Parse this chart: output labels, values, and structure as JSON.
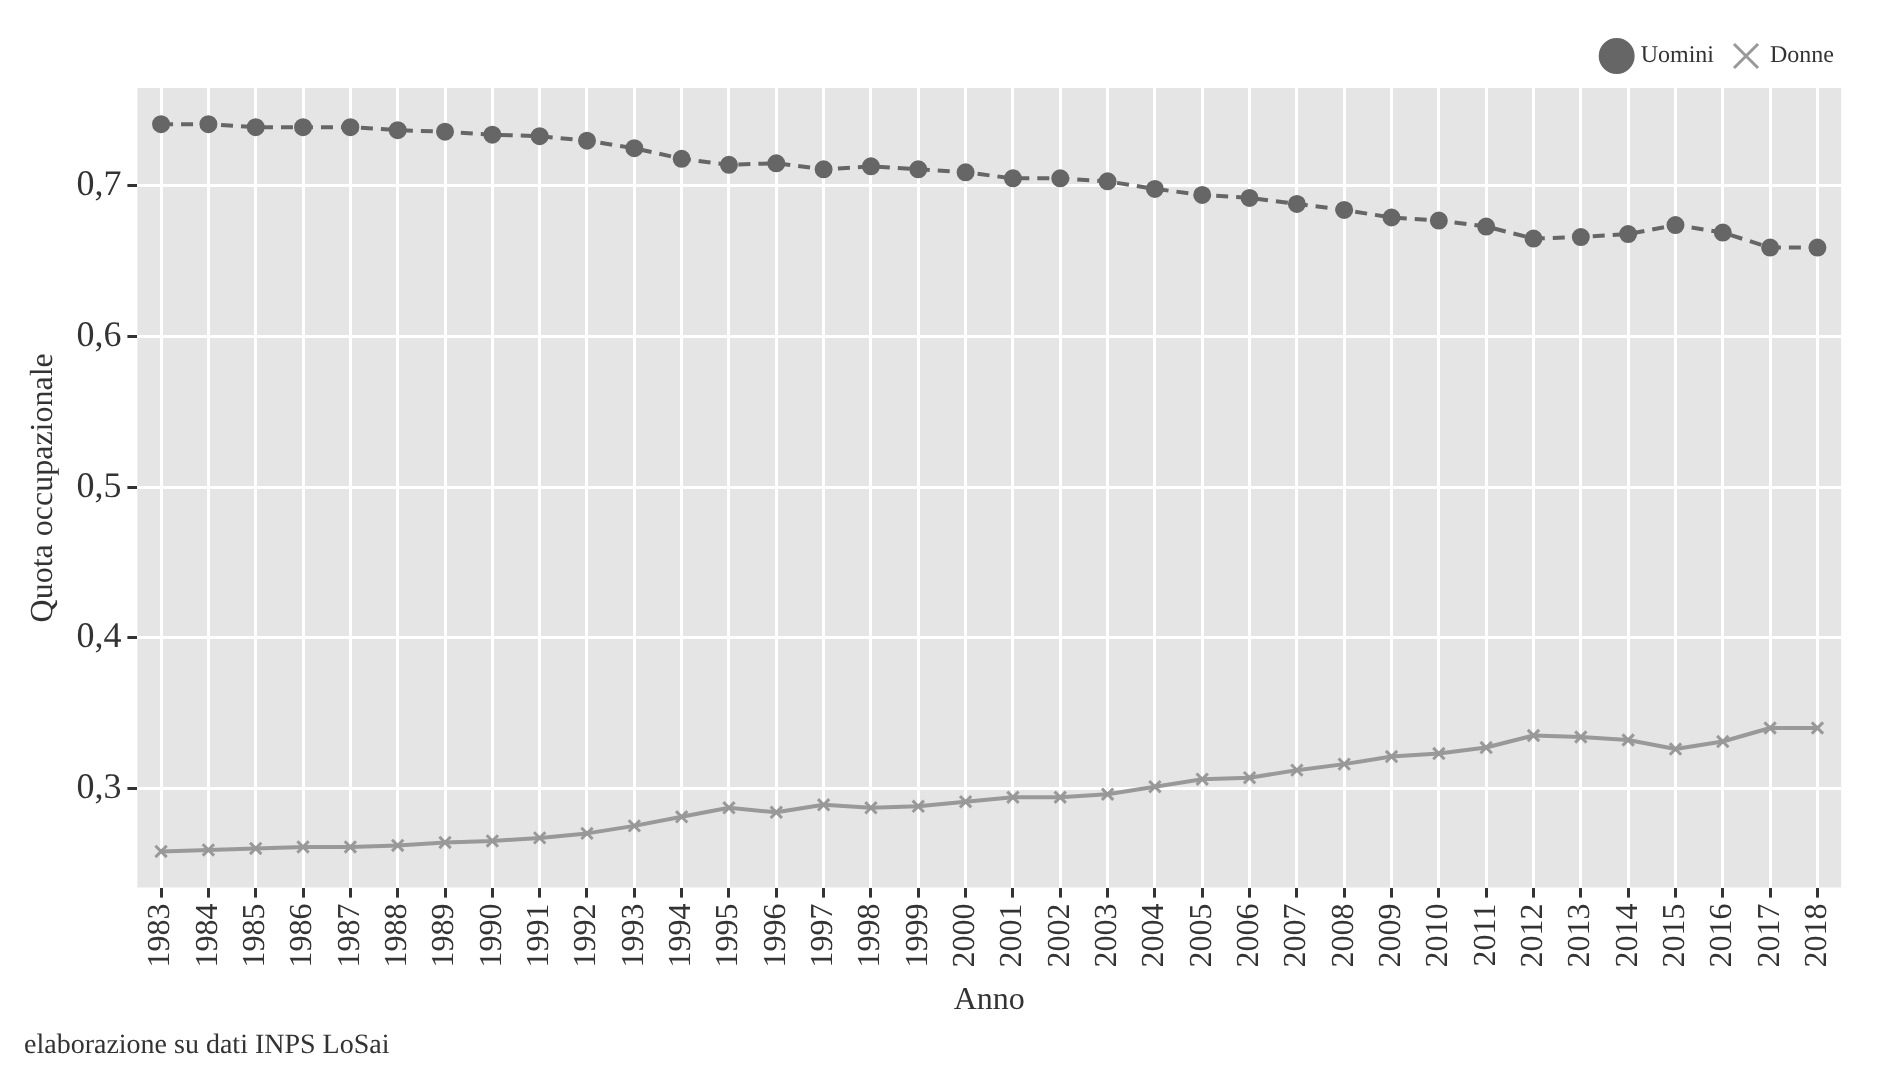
{
  "chart_data": {
    "type": "line",
    "xlabel": "Anno",
    "ylabel": "Quota occupazionale",
    "annotations": [
      "elaborazione su dati INPS LoSai"
    ],
    "categories": [
      "1983",
      "1984",
      "1985",
      "1986",
      "1987",
      "1988",
      "1989",
      "1990",
      "1991",
      "1992",
      "1993",
      "1994",
      "1995",
      "1996",
      "1997",
      "1998",
      "1999",
      "2000",
      "2001",
      "2002",
      "2003",
      "2004",
      "2005",
      "2006",
      "2007",
      "2008",
      "2009",
      "2010",
      "2011",
      "2012",
      "2013",
      "2014",
      "2015",
      "2016",
      "2017",
      "2018"
    ],
    "series": [
      {
        "name": "Uomini",
        "color": "#666666",
        "marker": "circle",
        "line_style": "dashed",
        "values": [
          0.741,
          0.741,
          0.739,
          0.739,
          0.739,
          0.737,
          0.736,
          0.734,
          0.733,
          0.73,
          0.725,
          0.718,
          0.714,
          0.715,
          0.711,
          0.713,
          0.711,
          0.709,
          0.705,
          0.705,
          0.703,
          0.698,
          0.694,
          0.692,
          0.688,
          0.684,
          0.679,
          0.677,
          0.673,
          0.665,
          0.666,
          0.668,
          0.674,
          0.669,
          0.659,
          0.659
        ]
      },
      {
        "name": "Donne",
        "color": "#999999",
        "marker": "cross",
        "line_style": "solid",
        "values": [
          0.258,
          0.259,
          0.26,
          0.261,
          0.261,
          0.262,
          0.264,
          0.265,
          0.267,
          0.27,
          0.275,
          0.281,
          0.287,
          0.284,
          0.289,
          0.287,
          0.288,
          0.291,
          0.294,
          0.294,
          0.296,
          0.301,
          0.306,
          0.307,
          0.312,
          0.316,
          0.321,
          0.323,
          0.327,
          0.335,
          0.334,
          0.332,
          0.326,
          0.331,
          0.34,
          0.34
        ]
      }
    ],
    "ylim": [
      0.234,
      0.765
    ],
    "yticks": [
      {
        "value": 0.3,
        "label": "0,3"
      },
      {
        "value": 0.4,
        "label": "0,4"
      },
      {
        "value": 0.5,
        "label": "0,5"
      },
      {
        "value": 0.6,
        "label": "0,6"
      },
      {
        "value": 0.7,
        "label": "0,7"
      }
    ],
    "grid": true,
    "legend": "top right"
  }
}
